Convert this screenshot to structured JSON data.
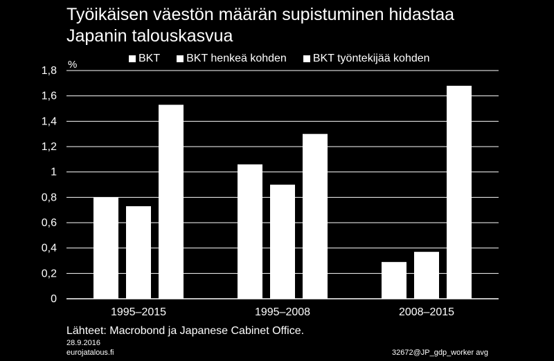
{
  "title_line1": "Työikäisen väestön määrän supistuminen hidastaa",
  "title_line2": "Japanin talouskasvua",
  "source": "Lähteet: Macrobond ja Japanese Cabinet Office.",
  "footer": {
    "date": "28.9.2016",
    "site": "eurojatalous.fi",
    "code": "32672@JP_gdp_worker avg"
  },
  "colors": {
    "background": "#000000",
    "bars": "#ffffff",
    "grid": "#ffffff",
    "text": "#ffffff"
  },
  "chart_data": {
    "type": "bar",
    "categories": [
      "1995–2015",
      "1995–2008",
      "2008–2015"
    ],
    "series": [
      {
        "name": "BKT",
        "values": [
          0.8,
          1.06,
          0.29
        ]
      },
      {
        "name": "BKT henkeä kohden",
        "values": [
          0.73,
          0.9,
          0.37
        ]
      },
      {
        "name": "BKT työntekijää kohden",
        "values": [
          1.53,
          1.3,
          1.68
        ]
      }
    ],
    "ylabel": "%",
    "ylim": [
      0,
      1.8
    ],
    "yticks": [
      0,
      0.2,
      0.4,
      0.6,
      0.8,
      1,
      1.2,
      1.4,
      1.6,
      1.8
    ],
    "ytick_labels": [
      "0",
      "0,2",
      "0,4",
      "0,6",
      "0,8",
      "1",
      "1,2",
      "1,4",
      "1,6",
      "1,8"
    ],
    "grid": true,
    "legend_position": "top"
  }
}
